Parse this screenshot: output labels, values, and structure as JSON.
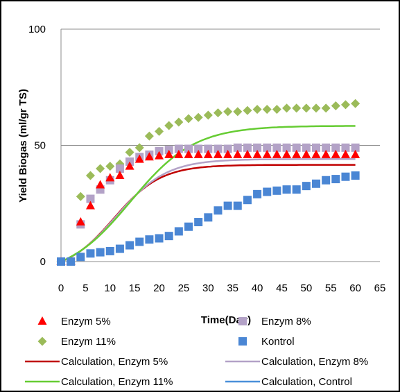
{
  "chart_data": {
    "type": "scatter",
    "title": "",
    "xlabel": "Time(Day)",
    "ylabel": "Yield Biogas (ml/gr TS)",
    "xlim": [
      0,
      65
    ],
    "ylim": [
      0,
      100
    ],
    "x_ticks": [
      "0",
      "5",
      "10",
      "15",
      "20",
      "25",
      "30",
      "35",
      "40",
      "45",
      "50",
      "55",
      "60",
      "65"
    ],
    "y_ticks": [
      "0",
      "50",
      "100"
    ],
    "grid": "horizontal",
    "legend_position": "bottom",
    "series": [
      {
        "name": "Enzym 5%",
        "kind": "marker",
        "marker": "triangle",
        "color": "#ff0000",
        "x": [
          0,
          2,
          4,
          6,
          8,
          10,
          12,
          14,
          16,
          18,
          20,
          22,
          24,
          26,
          28,
          30,
          32,
          34,
          36,
          38,
          40,
          42,
          44,
          46,
          48,
          50,
          52,
          54,
          56,
          58,
          60
        ],
        "y": [
          0,
          0,
          17,
          24,
          33,
          36,
          37,
          41,
          44,
          45,
          45.5,
          46,
          46,
          46,
          46,
          46,
          46,
          46,
          46,
          46,
          46,
          46,
          46,
          46,
          46,
          46,
          46,
          46,
          46,
          46,
          46
        ]
      },
      {
        "name": "Enzym 8%",
        "kind": "marker",
        "marker": "square",
        "color": "#b3a2c7",
        "x": [
          0,
          2,
          4,
          6,
          8,
          10,
          12,
          14,
          16,
          18,
          20,
          22,
          24,
          26,
          28,
          30,
          32,
          34,
          36,
          38,
          40,
          42,
          44,
          46,
          48,
          50,
          52,
          54,
          56,
          58,
          60
        ],
        "y": [
          0,
          0,
          16,
          27,
          31,
          35,
          40,
          43,
          45,
          46,
          47.5,
          48,
          48.5,
          48.5,
          48.5,
          48.5,
          48.5,
          48.5,
          49,
          49,
          49,
          49,
          49,
          49,
          49,
          49,
          49,
          49,
          49,
          49,
          49
        ]
      },
      {
        "name": "Enzym 11%",
        "kind": "marker",
        "marker": "diamond",
        "color": "#9bbb59",
        "x": [
          0,
          2,
          4,
          6,
          8,
          10,
          12,
          14,
          16,
          18,
          20,
          22,
          24,
          26,
          28,
          30,
          32,
          34,
          36,
          38,
          40,
          42,
          44,
          46,
          48,
          50,
          52,
          54,
          56,
          58,
          60
        ],
        "y": [
          0,
          0,
          28,
          37,
          40,
          41,
          42,
          47,
          49,
          54,
          56,
          58.5,
          60,
          61.5,
          62,
          63,
          64,
          64.5,
          64.5,
          65,
          65.5,
          65.5,
          65.5,
          66,
          66,
          66,
          66,
          66,
          67,
          67.5,
          68
        ]
      },
      {
        "name": "Kontrol",
        "kind": "marker",
        "marker": "square",
        "color": "#4a86d4",
        "x": [
          0,
          2,
          4,
          6,
          8,
          10,
          12,
          14,
          16,
          18,
          20,
          22,
          24,
          26,
          28,
          30,
          32,
          34,
          36,
          38,
          40,
          42,
          44,
          46,
          48,
          50,
          52,
          54,
          56,
          58,
          60
        ],
        "y": [
          0,
          0,
          2,
          3.5,
          4,
          4.5,
          5.5,
          7,
          8.5,
          9.5,
          10,
          11,
          13,
          15,
          17,
          19,
          22,
          24,
          24,
          26.5,
          29,
          30,
          30.5,
          31,
          31,
          32.5,
          33.5,
          35,
          35.5,
          36.5,
          37
        ]
      },
      {
        "name": "Calculation, Enzym 5%",
        "kind": "line",
        "color": "#c00000",
        "model": {
          "max": 46,
          "rate": 2.4,
          "lag": 1.2
        }
      },
      {
        "name": "Calculation, Enzym 8%",
        "kind": "line",
        "color": "#b3a2c7",
        "model": {
          "max": 48.8,
          "rate": 2.4,
          "lag": 1.2
        }
      },
      {
        "name": "Calculation, Enzym 11%",
        "kind": "line",
        "color": "#66cc33",
        "model": {
          "max": 65,
          "rate": 2.5,
          "lag": 1.2
        }
      },
      {
        "name": "Calculation, Control",
        "kind": "line",
        "color": "#4a90d9",
        "model": null
      }
    ]
  }
}
